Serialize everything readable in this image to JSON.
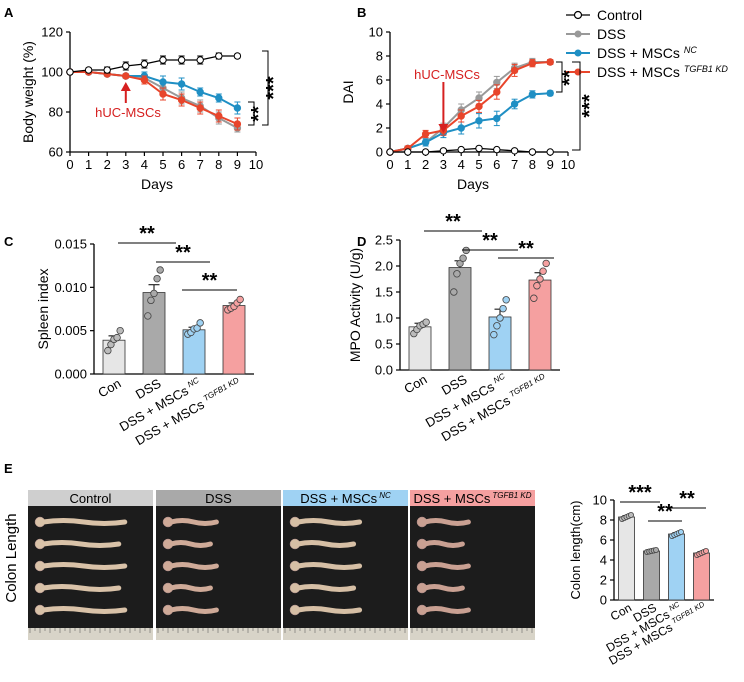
{
  "colors": {
    "control": "#ffffff",
    "dss": "#999999",
    "nc": "#1f8fc4",
    "kd": "#e8452b",
    "con_bar": "#e6e6e6",
    "dss_bar": "#a9a9a9",
    "nc_bar": "#9fd2f3",
    "kd_bar": "#f5a0a0",
    "annot_red": "#d62020"
  },
  "panel_labels": {
    "a": "A",
    "b": "B",
    "c": "C",
    "d": "D",
    "e": "E"
  },
  "legend": [
    {
      "label": "Control",
      "sup": ""
    },
    {
      "label": "DSS",
      "sup": ""
    },
    {
      "label": "DSS + MSCs",
      "sup": "NC"
    },
    {
      "label": "DSS + MSCs",
      "sup": "TGFB1 KD"
    }
  ],
  "annotations": {
    "arrow_label": "hUC-MSCs"
  },
  "chart_data": [
    {
      "id": "A",
      "type": "line",
      "ylabel": "Body weight (%)",
      "xlabel": "Days",
      "xlim": [
        0,
        10
      ],
      "ylim": [
        60,
        120
      ],
      "xticks": [
        0,
        1,
        2,
        3,
        4,
        5,
        6,
        7,
        8,
        9,
        10
      ],
      "yticks": [
        60,
        80,
        100,
        120
      ],
      "x": [
        0,
        1,
        2,
        3,
        4,
        5,
        6,
        7,
        8,
        9
      ],
      "series": [
        {
          "name": "Control",
          "values": [
            100,
            101,
            101,
            103,
            104,
            106,
            106,
            106,
            108,
            108
          ],
          "err": [
            1,
            1,
            1.5,
            2,
            2,
            2,
            2,
            2,
            1.5,
            1
          ]
        },
        {
          "name": "DSS",
          "values": [
            100,
            100,
            99,
            98,
            97,
            92,
            87,
            83,
            77,
            72
          ],
          "err": [
            1,
            1,
            1,
            1,
            2,
            2,
            3,
            3,
            3,
            2
          ]
        },
        {
          "name": "DSS + MSCs NC",
          "values": [
            100,
            100,
            99,
            98,
            98,
            95,
            94,
            90,
            87,
            82
          ],
          "err": [
            1,
            1,
            1,
            1,
            2,
            3,
            3,
            2,
            2,
            3
          ]
        },
        {
          "name": "DSS + MSCs TGFB1 KD",
          "values": [
            100,
            100,
            99,
            98,
            96,
            89,
            86,
            82,
            78,
            74
          ],
          "err": [
            1,
            1,
            1,
            1,
            2,
            3,
            3,
            3,
            3,
            3
          ]
        }
      ],
      "significance": [
        {
          "label": "***",
          "between": "Control vs DSS"
        },
        {
          "label": "**",
          "between": "NC vs KD"
        }
      ]
    },
    {
      "id": "B",
      "type": "line",
      "ylabel": "DAI",
      "xlabel": "Days",
      "xlim": [
        0,
        10
      ],
      "ylim": [
        0,
        10
      ],
      "xticks": [
        0,
        1,
        2,
        3,
        4,
        5,
        6,
        7,
        8,
        9,
        10
      ],
      "yticks": [
        0,
        2,
        4,
        6,
        8,
        10
      ],
      "x": [
        0,
        1,
        2,
        3,
        4,
        5,
        6,
        7,
        8,
        9
      ],
      "series": [
        {
          "name": "Control",
          "values": [
            0,
            0,
            0,
            0.1,
            0.2,
            0.3,
            0.2,
            0.1,
            0,
            0
          ],
          "err": [
            0,
            0,
            0,
            0.1,
            0.1,
            0.1,
            0.1,
            0.1,
            0,
            0
          ]
        },
        {
          "name": "DSS",
          "values": [
            0,
            0.3,
            0.8,
            2.0,
            3.5,
            4.5,
            5.8,
            7.0,
            7.5,
            7.5
          ],
          "err": [
            0,
            0.2,
            0.3,
            0.4,
            0.5,
            0.5,
            0.5,
            0.4,
            0.3,
            0.2
          ]
        },
        {
          "name": "DSS + MSCs NC",
          "values": [
            0,
            0.3,
            0.8,
            1.6,
            2.0,
            2.6,
            2.8,
            4.0,
            4.8,
            4.9
          ],
          "err": [
            0,
            0.2,
            0.3,
            0.4,
            0.5,
            0.6,
            0.6,
            0.4,
            0.3,
            0.2
          ]
        },
        {
          "name": "DSS + MSCs TGFB1 KD",
          "values": [
            0,
            0.3,
            1.5,
            1.8,
            3.0,
            3.8,
            5.0,
            6.8,
            7.4,
            7.5
          ],
          "err": [
            0,
            0.2,
            0.3,
            0.4,
            0.5,
            0.5,
            0.6,
            0.5,
            0.3,
            0.2
          ]
        }
      ],
      "significance": [
        {
          "label": "**",
          "between": "NC vs KD"
        },
        {
          "label": "***",
          "between": "Control vs DSS"
        }
      ]
    },
    {
      "id": "C",
      "type": "bar",
      "ylabel": "Spleen index",
      "ylim": [
        0,
        0.015
      ],
      "yticks": [
        0,
        0.005,
        0.01,
        0.015
      ],
      "ytick_labels": [
        "0.000",
        "0.005",
        "0.010",
        "0.015"
      ],
      "categories": [
        "Con",
        "DSS",
        "DSS + MSCs NC",
        "DSS + MSCs TGFB1 KD"
      ],
      "values": [
        0.0039,
        0.0094,
        0.0051,
        0.0079
      ],
      "err": [
        0.0005,
        0.0009,
        0.0003,
        0.0003
      ],
      "points": [
        [
          0.0027,
          0.0034,
          0.004,
          0.0042,
          0.005
        ],
        [
          0.0067,
          0.0085,
          0.0093,
          0.011,
          0.012
        ],
        [
          0.0046,
          0.0048,
          0.0052,
          0.0053,
          0.0059
        ],
        [
          0.0074,
          0.0076,
          0.0078,
          0.0082,
          0.0086
        ]
      ],
      "significance": [
        "**",
        "**",
        "**"
      ]
    },
    {
      "id": "D",
      "type": "bar",
      "ylabel": "MPO Activity (U/g)",
      "ylim": [
        0,
        2.5
      ],
      "yticks": [
        0,
        0.5,
        1.0,
        1.5,
        2.0,
        2.5
      ],
      "ytick_labels": [
        "0.0",
        "0.5",
        "1.0",
        "1.5",
        "2.0",
        "2.5"
      ],
      "categories": [
        "Con",
        "DSS",
        "DSS + MSCs NC",
        "DSS + MSCs TGFB1 KD"
      ],
      "values": [
        0.83,
        1.97,
        1.02,
        1.73
      ],
      "err": [
        0.07,
        0.13,
        0.15,
        0.14
      ],
      "points": [
        [
          0.7,
          0.78,
          0.85,
          0.88,
          0.92
        ],
        [
          1.5,
          1.85,
          2.05,
          2.15,
          2.3
        ],
        [
          0.68,
          0.85,
          1.0,
          1.18,
          1.35
        ],
        [
          1.38,
          1.62,
          1.75,
          1.9,
          2.05
        ]
      ],
      "significance": [
        "**",
        "**",
        "**"
      ]
    },
    {
      "id": "E",
      "type": "bar",
      "ylabel": "Colon length(cm)",
      "ylim": [
        0,
        10
      ],
      "yticks": [
        0,
        2,
        4,
        6,
        8,
        10
      ],
      "ytick_labels": [
        "0",
        "2",
        "4",
        "6",
        "8",
        "10"
      ],
      "categories": [
        "Con",
        "DSS",
        "DSS + MSCs NC",
        "DSS + MSCs TGFB1 KD"
      ],
      "values": [
        8.3,
        4.9,
        6.6,
        4.7
      ],
      "err": [
        0.15,
        0.1,
        0.15,
        0.15
      ],
      "points": [
        [
          8.1,
          8.2,
          8.3,
          8.4,
          8.5
        ],
        [
          4.8,
          4.85,
          4.9,
          4.95,
          5.0
        ],
        [
          6.4,
          6.5,
          6.6,
          6.7,
          6.8
        ],
        [
          4.5,
          4.6,
          4.7,
          4.8,
          4.9
        ]
      ],
      "significance": [
        "***",
        "**",
        "**"
      ]
    }
  ],
  "panel_e": {
    "row_label": "Colon Length",
    "photos": [
      {
        "label": "Control",
        "sup": ""
      },
      {
        "label": "DSS",
        "sup": ""
      },
      {
        "label": "DSS + MSCs",
        "sup": "NC"
      },
      {
        "label": "DSS + MSCs",
        "sup": "TGFB1 KD"
      }
    ]
  }
}
